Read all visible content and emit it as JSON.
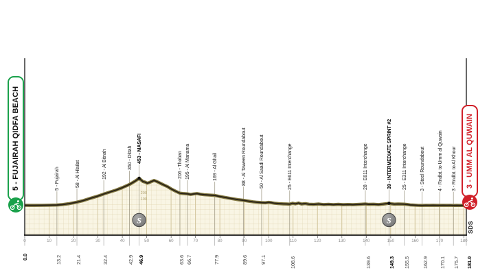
{
  "page": {
    "background": "#ffffff"
  },
  "start_box": {
    "label": "5 - FUJAIRAH QIDFA BEACH",
    "border_color": "#1aa14b",
    "text_color": "#111111",
    "icon": "cyclist-icon"
  },
  "finish_box": {
    "label": "3 - UMM AL QUWAIN",
    "border_color": "#d02029",
    "text_color": "#d02029",
    "icon": "cyclist-icon"
  },
  "sds_mark": "SDS",
  "chart_data": {
    "type": "area",
    "x_unit": "km",
    "xlim": [
      0,
      181
    ],
    "x_ticks": [
      0,
      10,
      20,
      30,
      40,
      50,
      60,
      70,
      80,
      90,
      100,
      110,
      120,
      130,
      140,
      150,
      160,
      170,
      180
    ],
    "grid": true,
    "colors": {
      "fill": "#f9f5e4",
      "grid": "#ded3ae",
      "grid_major": "#cfc298",
      "band": "#847a42",
      "line": "#2a2317",
      "axis": "#151515",
      "waypoint_line": "#958f7a",
      "sprint_icon_fill": "#787878",
      "sprint_icon_edge": "#454545"
    },
    "waypoints": [
      {
        "km": 13.2,
        "elev": 10,
        "label": "5 - Fujairah",
        "bold": false
      },
      {
        "km": 21.4,
        "elev": 58,
        "label": "58 - Al Hlailat",
        "bold": false
      },
      {
        "km": 32.4,
        "elev": 192,
        "label": "192 - Al Bitnah",
        "bold": false
      },
      {
        "km": 42.9,
        "elev": 350,
        "label": "350 - Dittah",
        "bold": false
      },
      {
        "km": 46.9,
        "elev": 453,
        "label": "453 - MASAFI",
        "bold": true,
        "dot": true,
        "sprint": true,
        "elev_marks": [
          200,
          100
        ]
      },
      {
        "km": 63.6,
        "elev": 206,
        "label": "206 - Thoban",
        "bold": false
      },
      {
        "km": 66.7,
        "elev": 195,
        "label": "195 - Al Manama",
        "bold": false
      },
      {
        "km": 77.9,
        "elev": 169,
        "label": "169 - Al Ghail",
        "bold": false
      },
      {
        "km": 89.6,
        "elev": 88,
        "label": "88 - Al Taween Roundabout",
        "bold": false
      },
      {
        "km": 97.1,
        "elev": 50,
        "label": "50 - Al Saadi Roundabout",
        "bold": false
      },
      {
        "km": 108.6,
        "elev": 25,
        "label": "25 - E611 Interchange",
        "bold": false
      },
      {
        "km": 139.6,
        "elev": 28,
        "label": "28 - E611 Interchange",
        "bold": false
      },
      {
        "km": 149.3,
        "elev": 39,
        "label": "39 - INTERMEDIATE SPRINT #2",
        "bold": true,
        "dot": true,
        "sprint": true
      },
      {
        "km": 155.5,
        "elev": 25,
        "label": "25 - E311 Interchange",
        "bold": false
      },
      {
        "km": 162.9,
        "elev": 3,
        "label": "3 - Steel Roundabout",
        "bold": false
      },
      {
        "km": 170.1,
        "elev": 4,
        "label": "4 - Rndbt. to Umm al Quwain",
        "bold": false
      },
      {
        "km": 175.7,
        "elev": 3,
        "label": "3 - Rndbt. to Al Khour",
        "bold": false
      }
    ],
    "km_labels": [
      {
        "km": 0,
        "text": "0.0",
        "bold": true
      },
      {
        "km": 13.2,
        "text": "13.2",
        "bold": false
      },
      {
        "km": 21.4,
        "text": "21.4",
        "bold": false
      },
      {
        "km": 32.4,
        "text": "32.4",
        "bold": false
      },
      {
        "km": 42.9,
        "text": "42.9",
        "bold": false
      },
      {
        "km": 46.9,
        "text": "46.9",
        "bold": true
      },
      {
        "km": 63.6,
        "text": "63.6",
        "bold": false
      },
      {
        "km": 66.7,
        "text": "66.7",
        "bold": false
      },
      {
        "km": 77.9,
        "text": "77.9",
        "bold": false
      },
      {
        "km": 89.6,
        "text": "89.6",
        "bold": false
      },
      {
        "km": 97.1,
        "text": "97.1",
        "bold": false
      },
      {
        "km": 108.6,
        "text": "108.6",
        "bold": false
      },
      {
        "km": 139.6,
        "text": "139.6",
        "bold": false
      },
      {
        "km": 149.3,
        "text": "149.3",
        "bold": true
      },
      {
        "km": 155.5,
        "text": "155.5",
        "bold": false
      },
      {
        "km": 162.9,
        "text": "162.9",
        "bold": false
      },
      {
        "km": 170.1,
        "text": "170.1",
        "bold": false
      },
      {
        "km": 175.7,
        "text": "175.7",
        "bold": false
      },
      {
        "km": 181,
        "text": "181.0",
        "bold": true
      }
    ],
    "sprint_icon_letter": "S",
    "profile": [
      [
        0,
        6
      ],
      [
        2,
        4
      ],
      [
        4,
        5
      ],
      [
        7,
        6
      ],
      [
        10,
        8
      ],
      [
        13.2,
        10
      ],
      [
        15.5,
        18
      ],
      [
        18,
        32
      ],
      [
        21.4,
        58
      ],
      [
        24,
        84
      ],
      [
        27,
        122
      ],
      [
        30,
        158
      ],
      [
        32.4,
        192
      ],
      [
        35,
        226
      ],
      [
        37.5,
        258
      ],
      [
        40,
        298
      ],
      [
        42.9,
        350
      ],
      [
        44.3,
        383
      ],
      [
        45.6,
        415
      ],
      [
        46.9,
        453
      ],
      [
        47.7,
        424
      ],
      [
        48.5,
        398
      ],
      [
        49.3,
        390
      ],
      [
        50.2,
        372
      ],
      [
        51,
        380
      ],
      [
        52,
        400
      ],
      [
        53,
        416
      ],
      [
        54,
        402
      ],
      [
        55.5,
        372
      ],
      [
        57,
        342
      ],
      [
        58.5,
        315
      ],
      [
        60,
        278
      ],
      [
        61.8,
        240
      ],
      [
        63.6,
        206
      ],
      [
        64.8,
        200
      ],
      [
        66.7,
        195
      ],
      [
        68,
        186
      ],
      [
        69.3,
        194
      ],
      [
        70.6,
        199
      ],
      [
        72,
        189
      ],
      [
        73.5,
        181
      ],
      [
        75.5,
        175
      ],
      [
        77.9,
        169
      ],
      [
        79.5,
        155
      ],
      [
        81.5,
        140
      ],
      [
        83.5,
        126
      ],
      [
        85.5,
        112
      ],
      [
        87.5,
        98
      ],
      [
        89.6,
        88
      ],
      [
        91.5,
        76
      ],
      [
        93.5,
        63
      ],
      [
        95.3,
        55
      ],
      [
        97.1,
        50
      ],
      [
        98.6,
        47
      ],
      [
        100,
        54
      ],
      [
        101.2,
        49
      ],
      [
        102.4,
        40
      ],
      [
        104,
        34
      ],
      [
        106,
        30
      ],
      [
        107.4,
        27
      ],
      [
        108.6,
        25
      ],
      [
        109.8,
        40
      ],
      [
        110.9,
        29
      ],
      [
        112.2,
        43
      ],
      [
        113.4,
        27
      ],
      [
        115,
        34
      ],
      [
        116.5,
        24
      ],
      [
        118.5,
        20
      ],
      [
        120.5,
        27
      ],
      [
        122.5,
        18
      ],
      [
        124.5,
        23
      ],
      [
        126.5,
        17
      ],
      [
        128.5,
        21
      ],
      [
        130.5,
        16
      ],
      [
        132.5,
        19
      ],
      [
        134.5,
        16
      ],
      [
        136.5,
        20
      ],
      [
        138,
        24
      ],
      [
        139.6,
        28
      ],
      [
        141,
        21
      ],
      [
        143,
        24
      ],
      [
        145,
        18
      ],
      [
        147,
        26
      ],
      [
        148.3,
        33
      ],
      [
        149.3,
        39
      ],
      [
        150.3,
        31
      ],
      [
        151.5,
        25
      ],
      [
        153,
        27
      ],
      [
        155.5,
        25
      ],
      [
        156.8,
        19
      ],
      [
        158,
        13
      ],
      [
        159.5,
        9
      ],
      [
        161,
        6
      ],
      [
        162.9,
        3
      ],
      [
        164.3,
        6
      ],
      [
        165.8,
        4
      ],
      [
        167.5,
        7
      ],
      [
        169,
        5
      ],
      [
        170.1,
        4
      ],
      [
        171.5,
        6
      ],
      [
        173,
        4
      ],
      [
        174.5,
        6
      ],
      [
        175.7,
        3
      ],
      [
        177,
        5
      ],
      [
        178.5,
        3
      ],
      [
        180,
        4
      ],
      [
        181,
        3
      ]
    ]
  }
}
